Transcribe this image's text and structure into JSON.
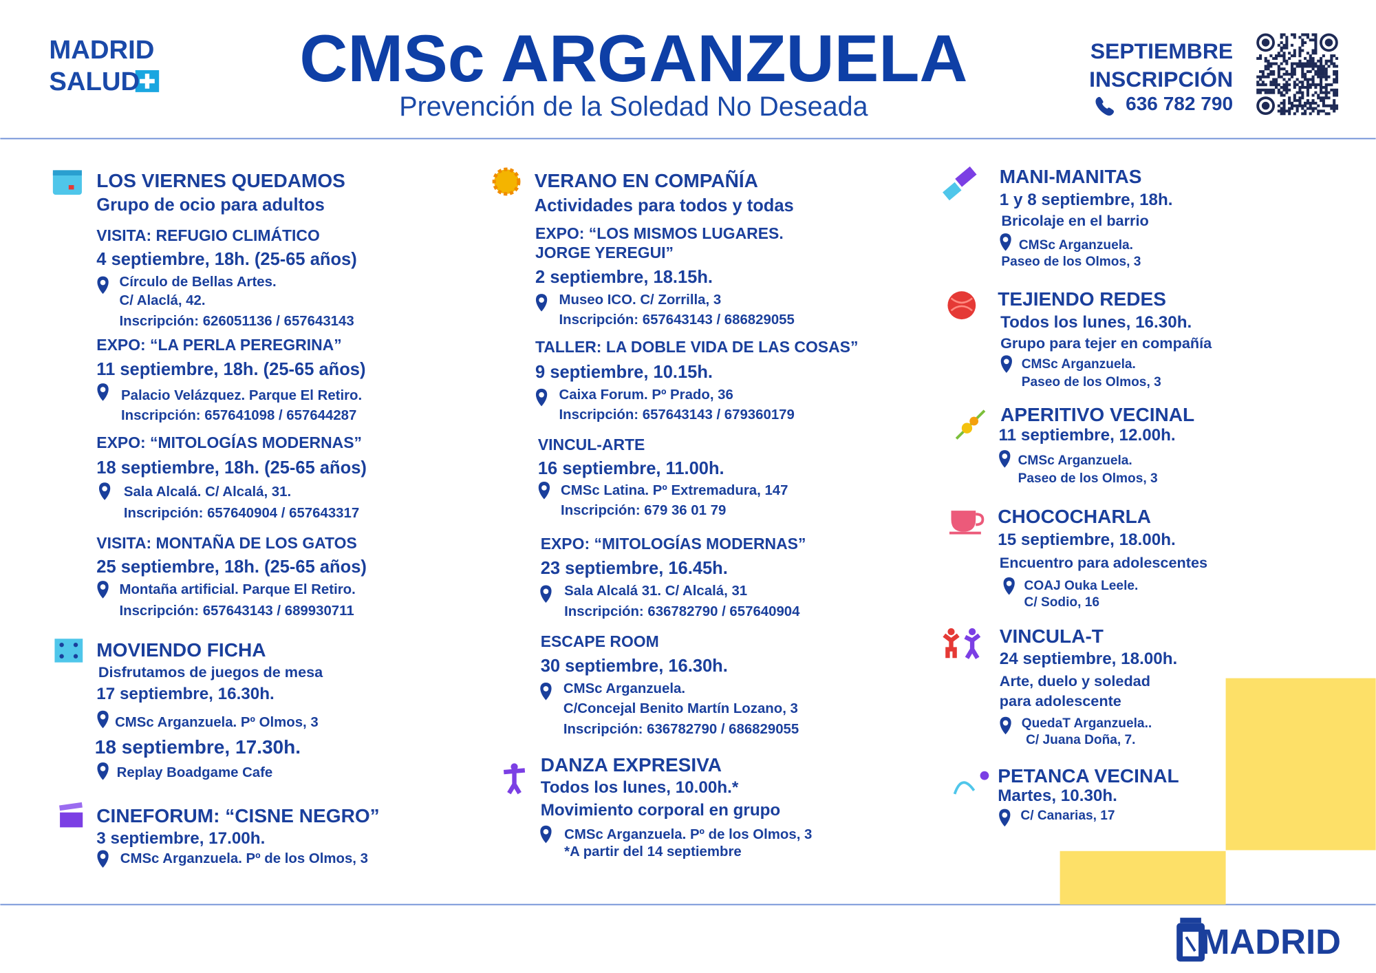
{
  "header": {
    "logo_line1": "MADRID",
    "logo_line2": "SALUD",
    "title": "CMSc ARGANZUELA",
    "subtitle": "Prevención de la Soledad No Deseada",
    "month": "SEPTIEMBRE",
    "registration": "INSCRIPCIÓN",
    "phone": "636 782 790"
  },
  "columns": [
    {
      "sections": [
        {
          "title": "LOS VIERNES QUEDAMOS",
          "subtitle": "Grupo de ocio para adultos",
          "events": [
            {
              "name": [
                "VISITA: REFUGIO CLIMÁTICO"
              ],
              "date": "4 septiembre, 18h. (25-65 años)",
              "place": [
                "Círculo de Bellas Artes.",
                "C/ Alaclá, 42.",
                "Inscripción: 626051136 / 657643143"
              ]
            },
            {
              "name": [
                "EXPO: “LA PERLA PEREGRINA”"
              ],
              "date": "11 septiembre, 18h. (25-65 años)",
              "place": [
                "Palacio Velázquez.  Parque El Retiro.",
                "Inscripción: 657641098 / 657644287"
              ]
            },
            {
              "name": [
                "EXPO: “MITOLOGÍAS MODERNAS”"
              ],
              "date": "18 septiembre, 18h. (25-65 años)",
              "place": [
                "Sala Alcalá. C/ Alcalá, 31.",
                "Inscripción: 657640904 / 657643317"
              ]
            },
            {
              "name": [
                "VISITA: MONTAÑA DE LOS GATOS"
              ],
              "date": "25 septiembre, 18h. (25-65 años)",
              "place": [
                "Montaña artificial. Parque El Retiro.",
                "Inscripción:  657643143 / 689930711"
              ]
            }
          ]
        },
        {
          "title": "MOVIENDO FICHA",
          "subtitle": "Disfrutamos de juegos de mesa",
          "events": [
            {
              "date": "17 septiembre, 16.30h.",
              "place": [
                "CMSc Arganzuela. Pº Olmos, 3"
              ]
            },
            {
              "date": "18 septiembre, 17.30h.",
              "place": [
                "Replay Boadgame Cafe"
              ]
            }
          ]
        },
        {
          "title": "CINEFORUM: “CISNE NEGRO”",
          "events": [
            {
              "date": "3 septiembre, 17.00h.",
              "place": [
                "CMSc Arganzuela. Pº de los Olmos, 3"
              ]
            }
          ]
        }
      ]
    },
    {
      "sections": [
        {
          "title": "VERANO EN COMPAÑÍA",
          "subtitle": "Actividades para todos y todas",
          "events": [
            {
              "name": [
                "EXPO: “LOS MISMOS LUGARES.",
                "JORGE YEREGUI”"
              ],
              "date": "2 septiembre, 18.15h.",
              "place": [
                "Museo ICO. C/ Zorrilla, 3",
                "Inscripción: 657643143 / 686829055"
              ]
            },
            {
              "name": [
                "TALLER: LA DOBLE VIDA DE LAS COSAS”"
              ],
              "date": "9 septiembre, 10.15h.",
              "place": [
                "Caixa Forum. Pº Prado, 36",
                "Inscripción: 657643143 / 679360179"
              ]
            },
            {
              "name": [
                "VINCUL-ARTE"
              ],
              "date": "16 septiembre, 11.00h.",
              "place": [
                "CMSc Latina. Pº Extremadura, 147",
                "Inscripción: 679 36 01 79"
              ]
            },
            {
              "name": [
                "EXPO: “MITOLOGÍAS MODERNAS”"
              ],
              "date": "23 septiembre, 16.45h.",
              "place": [
                "Sala Alcalá 31. C/ Alcalá, 31",
                "Inscripción: 636782790 / 657640904"
              ]
            },
            {
              "name": [
                "ESCAPE ROOM"
              ],
              "date": "30 septiembre, 16.30h.",
              "place": [
                "CMSc Arganzuela.",
                "C/Concejal Benito Martín Lozano, 3",
                "Inscripción:  636782790 / 686829055"
              ]
            }
          ]
        },
        {
          "title": "DANZA EXPRESIVA",
          "events": [
            {
              "date": "Todos los lunes, 10.00h.*",
              "description": [
                "Movimiento corporal en grupo"
              ],
              "place": [
                "CMSc Arganzuela. Pº de los Olmos, 3",
                "*A partir del 14 septiembre"
              ]
            }
          ]
        }
      ]
    },
    {
      "sections": [
        {
          "title": "MANI-MANITAS",
          "events": [
            {
              "date": "1 y 8 septiembre, 18h.",
              "description": [
                "Bricolaje en el barrio"
              ],
              "place": [
                "CMSc Arganzuela.",
                "Paseo de los Olmos, 3"
              ]
            }
          ]
        },
        {
          "title": "TEJIENDO REDES",
          "events": [
            {
              "date": "Todos los lunes, 16.30h.",
              "description": [
                "Grupo para tejer en compañía"
              ],
              "place": [
                "CMSc Arganzuela.",
                "Paseo de los Olmos, 3"
              ]
            }
          ]
        },
        {
          "title": "APERITIVO VECINAL",
          "events": [
            {
              "date": "11 septiembre, 12.00h.",
              "place": [
                "CMSc Arganzuela.",
                "Paseo de los Olmos, 3"
              ]
            }
          ]
        },
        {
          "title": "CHOCOCHARLA",
          "events": [
            {
              "date": "15 septiembre, 18.00h.",
              "description": [
                "Encuentro para adolescentes"
              ],
              "place": [
                "COAJ Ouka Leele.",
                "C/ Sodio, 16"
              ]
            }
          ]
        },
        {
          "title": "VINCULA-T",
          "events": [
            {
              "date": "24 septiembre, 18.00h.",
              "description": [
                "Arte, duelo y soledad",
                "para adolescente"
              ],
              "place": [
                "QuedaT Arganzuela..",
                "C/ Juana Doña, 7."
              ]
            }
          ]
        },
        {
          "title": "PETANCA VECINAL",
          "events": [
            {
              "date": "Martes, 10.30h.",
              "place": [
                "C/ Canarias, 17"
              ]
            }
          ]
        }
      ]
    }
  ],
  "footer": {
    "logo": "MADRID"
  }
}
